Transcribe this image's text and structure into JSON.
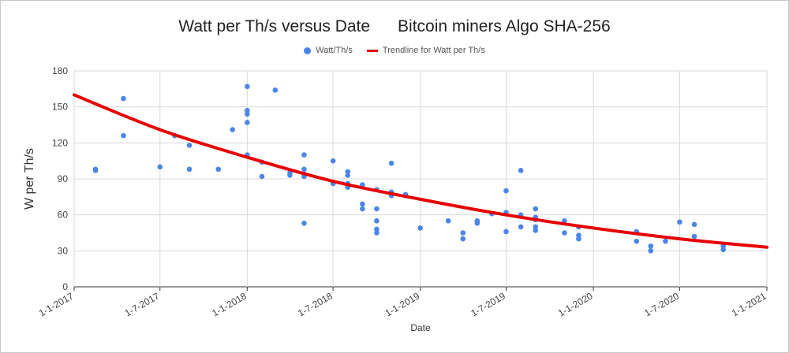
{
  "chart_data": {
    "type": "scatter",
    "title": "Watt per Th/s versus Date      Bitcoin miners Algo SHA-256",
    "xlabel": "Date",
    "ylabel": "W per Th/s",
    "ylim": [
      0,
      180
    ],
    "yticks": [
      0,
      30,
      60,
      90,
      120,
      150,
      180
    ],
    "xlim": [
      "2017-01-01",
      "2021-01-01"
    ],
    "xticks": [
      {
        "date": "2017-01-01",
        "label": "1-1-2017"
      },
      {
        "date": "2017-07-01",
        "label": "1-7-2017"
      },
      {
        "date": "2018-01-01",
        "label": "1-1-2018"
      },
      {
        "date": "2018-07-01",
        "label": "1-7-2018"
      },
      {
        "date": "2019-01-01",
        "label": "1-1-2019"
      },
      {
        "date": "2019-07-01",
        "label": "1-7-2019"
      },
      {
        "date": "2020-01-01",
        "label": "1-1-2020"
      },
      {
        "date": "2020-07-01",
        "label": "1-7-2020"
      },
      {
        "date": "2021-01-01",
        "label": "1-1-2021"
      }
    ],
    "grid": true,
    "legend_position": "top",
    "series": [
      {
        "name": "Watt/Th/s",
        "type": "scatter",
        "color": "#4a86e8",
        "points": [
          {
            "x": "2017-02-15",
            "y": 98
          },
          {
            "x": "2017-02-15",
            "y": 97
          },
          {
            "x": "2017-04-15",
            "y": 157
          },
          {
            "x": "2017-04-15",
            "y": 126
          },
          {
            "x": "2017-07-01",
            "y": 100
          },
          {
            "x": "2017-08-01",
            "y": 126
          },
          {
            "x": "2017-09-01",
            "y": 118
          },
          {
            "x": "2017-09-01",
            "y": 98
          },
          {
            "x": "2017-11-01",
            "y": 98
          },
          {
            "x": "2017-12-01",
            "y": 131
          },
          {
            "x": "2018-01-01",
            "y": 167
          },
          {
            "x": "2018-01-01",
            "y": 147
          },
          {
            "x": "2018-01-01",
            "y": 144
          },
          {
            "x": "2018-01-01",
            "y": 137
          },
          {
            "x": "2018-01-01",
            "y": 110
          },
          {
            "x": "2018-02-01",
            "y": 104
          },
          {
            "x": "2018-02-01",
            "y": 92
          },
          {
            "x": "2018-03-01",
            "y": 164
          },
          {
            "x": "2018-04-01",
            "y": 95
          },
          {
            "x": "2018-04-01",
            "y": 93
          },
          {
            "x": "2018-05-01",
            "y": 110
          },
          {
            "x": "2018-05-01",
            "y": 98
          },
          {
            "x": "2018-05-01",
            "y": 94
          },
          {
            "x": "2018-05-01",
            "y": 92
          },
          {
            "x": "2018-05-01",
            "y": 53
          },
          {
            "x": "2018-07-01",
            "y": 105
          },
          {
            "x": "2018-07-01",
            "y": 87
          },
          {
            "x": "2018-07-01",
            "y": 86
          },
          {
            "x": "2018-08-01",
            "y": 96
          },
          {
            "x": "2018-08-01",
            "y": 93
          },
          {
            "x": "2018-08-01",
            "y": 86
          },
          {
            "x": "2018-08-01",
            "y": 83
          },
          {
            "x": "2018-09-01",
            "y": 85
          },
          {
            "x": "2018-09-01",
            "y": 69
          },
          {
            "x": "2018-09-01",
            "y": 65
          },
          {
            "x": "2018-10-01",
            "y": 81
          },
          {
            "x": "2018-10-01",
            "y": 65
          },
          {
            "x": "2018-10-01",
            "y": 55
          },
          {
            "x": "2018-10-01",
            "y": 48
          },
          {
            "x": "2018-10-01",
            "y": 45
          },
          {
            "x": "2018-11-01",
            "y": 103
          },
          {
            "x": "2018-11-01",
            "y": 79
          },
          {
            "x": "2018-11-01",
            "y": 76
          },
          {
            "x": "2018-12-01",
            "y": 77
          },
          {
            "x": "2018-12-01",
            "y": 76
          },
          {
            "x": "2019-01-01",
            "y": 49
          },
          {
            "x": "2019-03-01",
            "y": 55
          },
          {
            "x": "2019-04-01",
            "y": 45
          },
          {
            "x": "2019-04-01",
            "y": 40
          },
          {
            "x": "2019-05-01",
            "y": 55
          },
          {
            "x": "2019-05-01",
            "y": 53
          },
          {
            "x": "2019-06-01",
            "y": 61
          },
          {
            "x": "2019-07-01",
            "y": 80
          },
          {
            "x": "2019-07-01",
            "y": 62
          },
          {
            "x": "2019-07-01",
            "y": 46
          },
          {
            "x": "2019-08-01",
            "y": 97
          },
          {
            "x": "2019-08-01",
            "y": 60
          },
          {
            "x": "2019-08-01",
            "y": 50
          },
          {
            "x": "2019-09-01",
            "y": 65
          },
          {
            "x": "2019-09-01",
            "y": 58
          },
          {
            "x": "2019-09-01",
            "y": 56
          },
          {
            "x": "2019-09-01",
            "y": 50
          },
          {
            "x": "2019-09-01",
            "y": 47
          },
          {
            "x": "2019-11-01",
            "y": 55
          },
          {
            "x": "2019-11-01",
            "y": 45
          },
          {
            "x": "2019-12-01",
            "y": 50
          },
          {
            "x": "2019-12-01",
            "y": 43
          },
          {
            "x": "2019-12-01",
            "y": 40
          },
          {
            "x": "2020-04-01",
            "y": 46
          },
          {
            "x": "2020-04-01",
            "y": 38
          },
          {
            "x": "2020-05-01",
            "y": 34
          },
          {
            "x": "2020-05-01",
            "y": 30
          },
          {
            "x": "2020-06-01",
            "y": 38
          },
          {
            "x": "2020-07-01",
            "y": 54
          },
          {
            "x": "2020-08-01",
            "y": 52
          },
          {
            "x": "2020-08-01",
            "y": 42
          },
          {
            "x": "2020-10-01",
            "y": 34
          },
          {
            "x": "2020-10-01",
            "y": 31
          }
        ]
      },
      {
        "name": "Trendline for Watt per Th/s",
        "type": "trendline",
        "color": "#e60000",
        "points": [
          {
            "x": "2017-01-01",
            "y": 160
          },
          {
            "x": "2017-07-01",
            "y": 131
          },
          {
            "x": "2018-01-01",
            "y": 108
          },
          {
            "x": "2018-07-01",
            "y": 88
          },
          {
            "x": "2019-01-01",
            "y": 73
          },
          {
            "x": "2019-07-01",
            "y": 60
          },
          {
            "x": "2020-01-01",
            "y": 49
          },
          {
            "x": "2020-07-01",
            "y": 40
          },
          {
            "x": "2021-01-01",
            "y": 33
          }
        ]
      }
    ]
  }
}
